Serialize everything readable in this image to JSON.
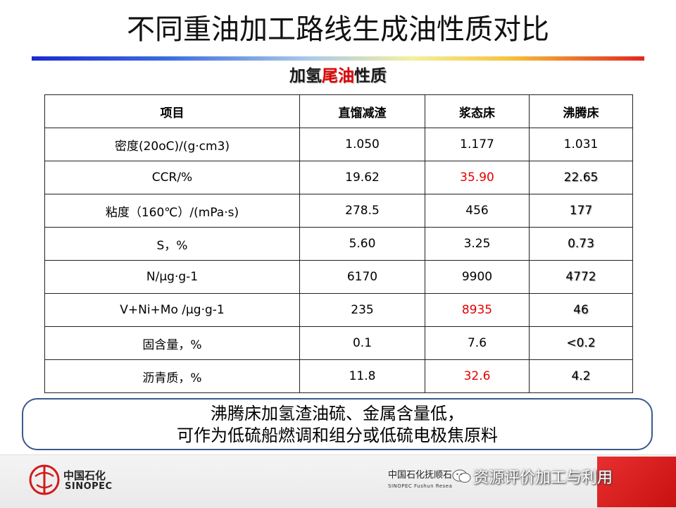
{
  "title": "不同重油加工路线生成油性质对比",
  "subtitle": {
    "part1": "加氢",
    "part2": "尾油",
    "part3": "性质"
  },
  "table": {
    "headers": [
      "项目",
      "直馏减渣",
      "浆态床",
      "沸腾床"
    ],
    "rows": [
      [
        "密度(20oC)/(g·cm3)",
        "1.050",
        "1.177",
        "1.031"
      ],
      [
        "CCR/%",
        "19.62",
        "35.90",
        "22.65"
      ],
      [
        "粘度（160℃）/(mPa·s)",
        "278.5",
        "456",
        "177"
      ],
      [
        "S，%",
        "5.60",
        "3.25",
        "0.73"
      ],
      [
        "N/μg·g-1",
        "6170",
        "9900",
        "4772"
      ],
      [
        "V+Ni+Mo /μg·g-1",
        "235",
        "8935",
        "46"
      ],
      [
        "固含量，%",
        "0.1",
        "7.6",
        "<0.2"
      ],
      [
        "沥青质，%",
        "11.8",
        "32.6",
        "4.2"
      ]
    ]
  },
  "conclusion": {
    "line1": "沸腾床加氢渣油硫、金属含量低，",
    "line2": "可作为低硫船燃调和组分或低硫电极焦原料"
  },
  "footer": {
    "logo_cn": "中国石化",
    "logo_en": "SINOPEC",
    "institute_cn": "中国石化抚顺石",
    "institute_en": "SINOPEC  Fushun Resea",
    "watermark": "资源评价加工与利用"
  },
  "colors": {
    "accent_red": "#e30000",
    "box_border": "#3a5a8a"
  }
}
